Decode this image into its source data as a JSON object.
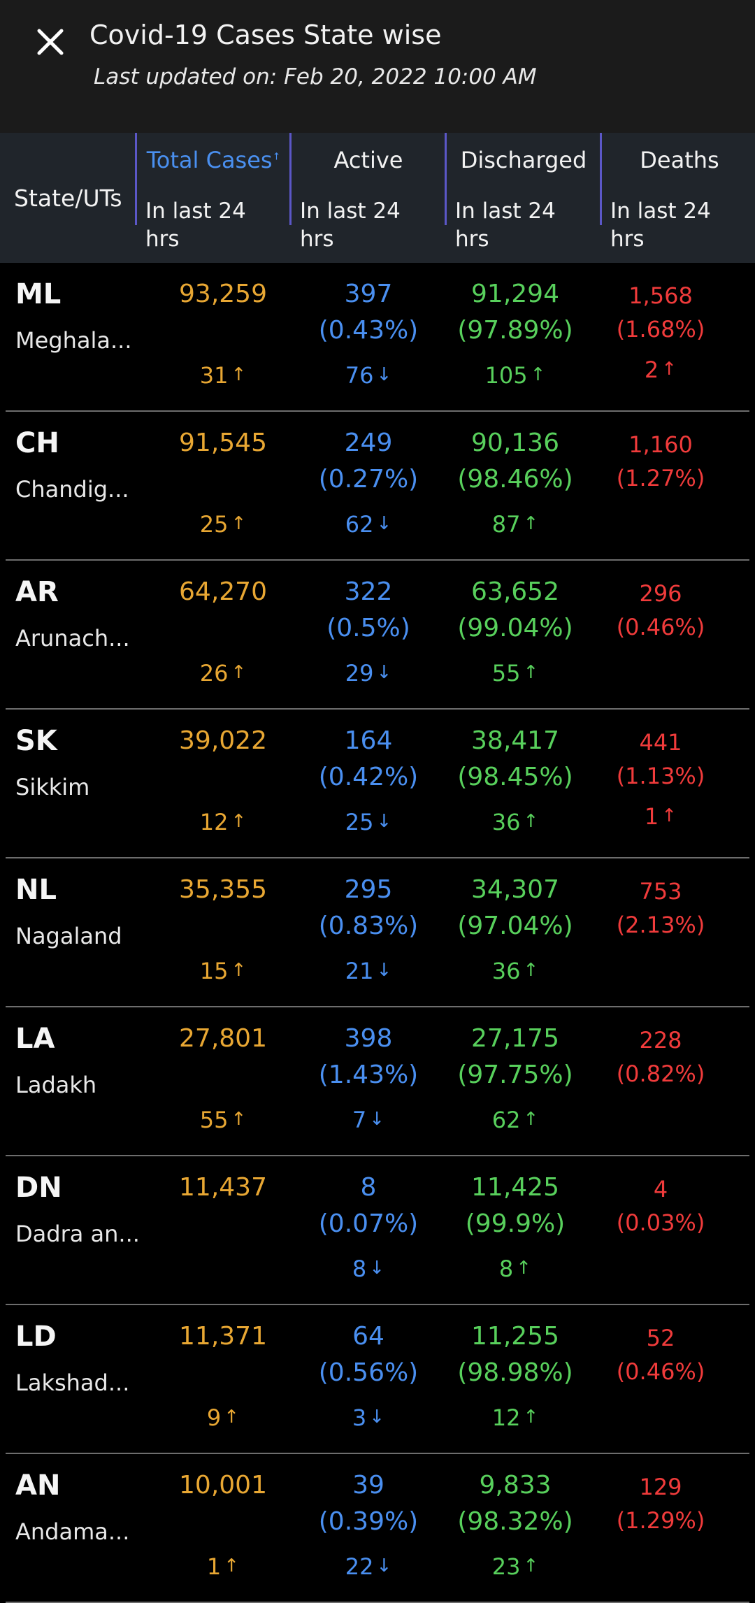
{
  "header": {
    "title": "Covid-19 Cases State wise",
    "subtitle": "Last updated on: Feb 20, 2022 10:00 AM"
  },
  "table": {
    "state_header": "State/UTs",
    "columns": [
      {
        "label": "Total Cases",
        "sub": "In last 24 hrs"
      },
      {
        "label": "Active",
        "sub": "In last 24 hrs"
      },
      {
        "label": "Discharged",
        "sub": "In last 24 hrs"
      },
      {
        "label": "Deaths",
        "sub": "In last 24 hrs"
      }
    ],
    "rows": [
      {
        "code": "ML",
        "name": "Meghala...",
        "total": "93,259",
        "total_delta": "31",
        "active": "397",
        "active_pct": "(0.43%)",
        "active_delta": "76",
        "discharged": "91,294",
        "discharged_pct": "(97.89%)",
        "discharged_delta": "105",
        "deaths": "1,568",
        "deaths_pct": "(1.68%)",
        "deaths_delta": "2"
      },
      {
        "code": "CH",
        "name": "Chandig...",
        "total": "91,545",
        "total_delta": "25",
        "active": "249",
        "active_pct": "(0.27%)",
        "active_delta": "62",
        "discharged": "90,136",
        "discharged_pct": "(98.46%)",
        "discharged_delta": "87",
        "deaths": "1,160",
        "deaths_pct": "(1.27%)",
        "deaths_delta": ""
      },
      {
        "code": "AR",
        "name": "Arunach...",
        "total": "64,270",
        "total_delta": "26",
        "active": "322",
        "active_pct": "(0.5%)",
        "active_delta": "29",
        "discharged": "63,652",
        "discharged_pct": "(99.04%)",
        "discharged_delta": "55",
        "deaths": "296",
        "deaths_pct": "(0.46%)",
        "deaths_delta": ""
      },
      {
        "code": "SK",
        "name": "Sikkim",
        "total": "39,022",
        "total_delta": "12",
        "active": "164",
        "active_pct": "(0.42%)",
        "active_delta": "25",
        "discharged": "38,417",
        "discharged_pct": "(98.45%)",
        "discharged_delta": "36",
        "deaths": "441",
        "deaths_pct": "(1.13%)",
        "deaths_delta": "1"
      },
      {
        "code": "NL",
        "name": "Nagaland",
        "total": "35,355",
        "total_delta": "15",
        "active": "295",
        "active_pct": "(0.83%)",
        "active_delta": "21",
        "discharged": "34,307",
        "discharged_pct": "(97.04%)",
        "discharged_delta": "36",
        "deaths": "753",
        "deaths_pct": "(2.13%)",
        "deaths_delta": ""
      },
      {
        "code": "LA",
        "name": "Ladakh",
        "total": "27,801",
        "total_delta": "55",
        "active": "398",
        "active_pct": "(1.43%)",
        "active_delta": "7",
        "discharged": "27,175",
        "discharged_pct": "(97.75%)",
        "discharged_delta": "62",
        "deaths": "228",
        "deaths_pct": "(0.82%)",
        "deaths_delta": ""
      },
      {
        "code": "DN",
        "name": "Dadra an...",
        "total": "11,437",
        "total_delta": "",
        "active": "8",
        "active_pct": "(0.07%)",
        "active_delta": "8",
        "discharged": "11,425",
        "discharged_pct": "(99.9%)",
        "discharged_delta": "8",
        "deaths": "4",
        "deaths_pct": "(0.03%)",
        "deaths_delta": ""
      },
      {
        "code": "LD",
        "name": "Lakshad...",
        "total": "11,371",
        "total_delta": "9",
        "active": "64",
        "active_pct": "(0.56%)",
        "active_delta": "3",
        "discharged": "11,255",
        "discharged_pct": "(98.98%)",
        "discharged_delta": "12",
        "deaths": "52",
        "deaths_pct": "(0.46%)",
        "deaths_delta": ""
      },
      {
        "code": "AN",
        "name": "Andama...",
        "total": "10,001",
        "total_delta": "1",
        "active": "39",
        "active_pct": "(0.39%)",
        "active_delta": "22",
        "discharged": "9,833",
        "discharged_pct": "(98.32%)",
        "discharged_delta": "23",
        "deaths": "129",
        "deaths_pct": "(1.29%)",
        "deaths_delta": ""
      }
    ]
  },
  "icons": {
    "close": "close-icon",
    "up": "arrow-up-icon",
    "down": "arrow-down-icon"
  },
  "colors": {
    "total": "#e8a733",
    "active": "#4a8ff0",
    "discharged": "#58d05c",
    "deaths": "#f03b3b",
    "selected_header": "#4a90f0"
  }
}
